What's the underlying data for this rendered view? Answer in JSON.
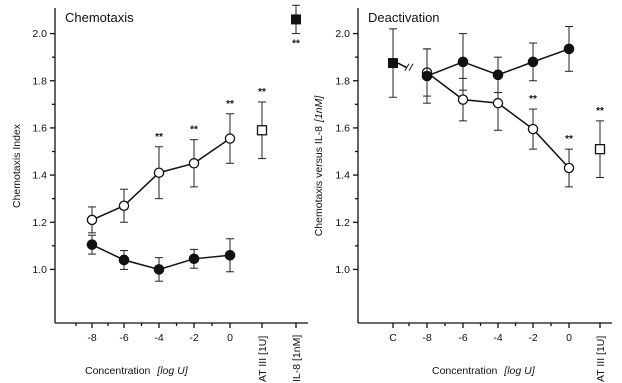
{
  "chart_data": [
    {
      "type": "scatter",
      "title": "Chemotaxis",
      "ylabel": "Chemotaxis Index",
      "xlabel": "Concentration",
      "xlabel_unit": "[log U]",
      "ylim": [
        0.9,
        2.1
      ],
      "yticks": [
        "1.0",
        "1.2",
        "1.4",
        "1.6",
        "1.8",
        "2.0"
      ],
      "x": [
        "-8",
        "-6",
        "-4",
        "-2",
        "0"
      ],
      "extra_categories": [
        "AT III [1U]",
        "IL-8 [1nM]"
      ],
      "significance_label": "**",
      "series": [
        {
          "marker": "open-circle",
          "values": [
            1.21,
            1.27,
            1.41,
            1.45,
            1.555
          ],
          "err": [
            0.055,
            0.07,
            0.11,
            0.1,
            0.105
          ],
          "sig": [
            false,
            false,
            true,
            true,
            true
          ]
        },
        {
          "marker": "filled-circle",
          "values": [
            1.105,
            1.04,
            1.0,
            1.045,
            1.06
          ],
          "err": [
            0.04,
            0.04,
            0.05,
            0.04,
            0.07
          ],
          "sig": [
            false,
            false,
            false,
            false,
            false
          ]
        }
      ],
      "single_points": [
        {
          "category": "AT III [1U]",
          "marker": "open-square",
          "value": 1.59,
          "err": 0.12,
          "sig": true
        },
        {
          "category": "IL-8 [1nM]",
          "marker": "filled-square",
          "value": 2.06,
          "err": 0.06,
          "sig": true
        }
      ]
    },
    {
      "type": "scatter",
      "title": "Deactivation",
      "ylabel": "Chemotaxis versus IL-8",
      "ylabel_unit": "[1nM]",
      "xlabel": "Concentration",
      "xlabel_unit": "[log U]",
      "ylim": [
        0.9,
        2.1
      ],
      "yticks": [
        "1.0",
        "1.2",
        "1.4",
        "1.6",
        "1.8",
        "2.0"
      ],
      "x": [
        "-8",
        "-6",
        "-4",
        "-2",
        "0"
      ],
      "control_category": "C",
      "extra_categories": [
        "AT III [1U]"
      ],
      "significance_label": "**",
      "control_point": {
        "marker": "filled-square",
        "value": 1.875,
        "err": 0.145
      },
      "series": [
        {
          "marker": "open-circle",
          "values": [
            1.835,
            1.72,
            1.705,
            1.595,
            1.43
          ],
          "err": [
            0.1,
            0.09,
            0.115,
            0.085,
            0.08
          ],
          "sig": [
            false,
            false,
            false,
            true,
            true
          ]
        },
        {
          "marker": "filled-circle",
          "values": [
            1.82,
            1.88,
            1.825,
            1.88,
            1.935
          ],
          "err": [
            0.115,
            0.12,
            0.075,
            0.08,
            0.095
          ],
          "sig": [
            false,
            false,
            false,
            false,
            false
          ]
        }
      ],
      "single_points": [
        {
          "category": "AT III [1U]",
          "marker": "open-square",
          "value": 1.51,
          "err": 0.12,
          "sig": true
        }
      ]
    }
  ]
}
